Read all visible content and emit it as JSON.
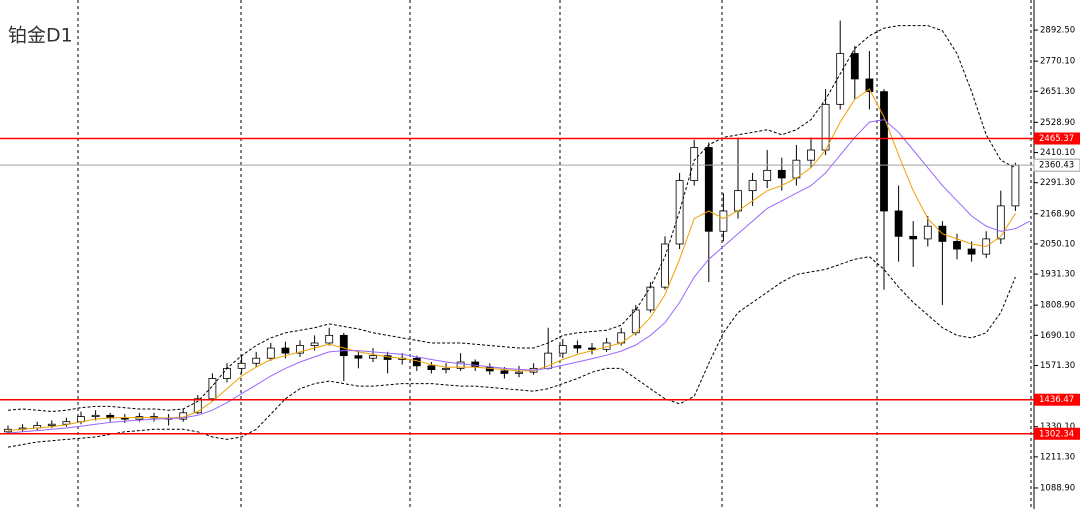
{
  "chart_data": {
    "type": "candlestick",
    "title": "铂金D1",
    "open": [
      1310,
      1320,
      1325,
      1335,
      1340,
      1350,
      1370,
      1375,
      1365,
      1360,
      1370,
      1365,
      1360,
      1385,
      1440,
      1520,
      1560,
      1580,
      1600,
      1640,
      1620,
      1650,
      1660,
      1690,
      1610,
      1600,
      1610,
      1595,
      1600,
      1570,
      1555,
      1560,
      1585,
      1565,
      1550,
      1540,
      1545,
      1560,
      1620,
      1650,
      1640,
      1635,
      1660,
      1700,
      1790,
      1880,
      2050,
      2300,
      2430,
      2100,
      2180,
      2260,
      2300,
      2340,
      2310,
      2380,
      2420,
      2600,
      2800,
      2700,
      2650,
      2180,
      2080,
      2070,
      2120,
      2060,
      2030,
      2010,
      2070,
      2200
    ],
    "high": [
      1335,
      1340,
      1350,
      1355,
      1365,
      1390,
      1395,
      1385,
      1380,
      1385,
      1385,
      1380,
      1400,
      1455,
      1540,
      1580,
      1610,
      1625,
      1660,
      1665,
      1670,
      1690,
      1720,
      1700,
      1630,
      1640,
      1625,
      1620,
      1610,
      1585,
      1580,
      1620,
      1595,
      1580,
      1565,
      1570,
      1580,
      1720,
      1675,
      1670,
      1660,
      1680,
      1720,
      1810,
      1900,
      2080,
      2330,
      2460,
      2450,
      2250,
      2470,
      2330,
      2420,
      2390,
      2440,
      2470,
      2660,
      2930,
      2830,
      2810,
      2660,
      2280,
      2140,
      2160,
      2140,
      2090,
      2060,
      2100,
      2260,
      2370
    ],
    "low": [
      1300,
      1310,
      1315,
      1325,
      1330,
      1340,
      1355,
      1350,
      1345,
      1350,
      1350,
      1335,
      1350,
      1380,
      1430,
      1505,
      1540,
      1565,
      1590,
      1600,
      1605,
      1630,
      1650,
      1510,
      1560,
      1585,
      1540,
      1575,
      1550,
      1540,
      1540,
      1550,
      1550,
      1535,
      1520,
      1525,
      1535,
      1555,
      1600,
      1620,
      1615,
      1625,
      1650,
      1690,
      1780,
      1870,
      2030,
      2280,
      1900,
      2060,
      2150,
      2200,
      2270,
      2260,
      2280,
      2350,
      2400,
      2580,
      2620,
      2580,
      1870,
      1980,
      1960,
      2040,
      1810,
      1990,
      1980,
      1995,
      2050,
      2180
    ],
    "close": [
      1320,
      1325,
      1335,
      1340,
      1350,
      1370,
      1375,
      1365,
      1360,
      1370,
      1365,
      1360,
      1385,
      1440,
      1520,
      1560,
      1580,
      1600,
      1640,
      1620,
      1650,
      1660,
      1690,
      1610,
      1600,
      1610,
      1595,
      1600,
      1570,
      1555,
      1560,
      1585,
      1565,
      1550,
      1540,
      1545,
      1560,
      1620,
      1650,
      1640,
      1635,
      1660,
      1700,
      1790,
      1880,
      2050,
      2300,
      2430,
      2100,
      2180,
      2260,
      2300,
      2340,
      2310,
      2380,
      2420,
      2600,
      2800,
      2700,
      2650,
      2180,
      2080,
      2070,
      2120,
      2060,
      2030,
      2010,
      2070,
      2200,
      2360
    ],
    "up_color": "#ffffff",
    "down_color": "#000000",
    "lines": [
      {
        "color": "#f0a000",
        "dashed": false,
        "values": [
          1315,
          1320,
          1325,
          1330,
          1338,
          1350,
          1360,
          1365,
          1366,
          1366,
          1366,
          1364,
          1368,
          1390,
          1430,
          1480,
          1530,
          1565,
          1595,
          1610,
          1625,
          1640,
          1655,
          1640,
          1625,
          1615,
          1605,
          1600,
          1590,
          1575,
          1565,
          1565,
          1565,
          1560,
          1555,
          1550,
          1550,
          1570,
          1595,
          1615,
          1630,
          1645,
          1660,
          1700,
          1760,
          1850,
          1990,
          2150,
          2180,
          2150,
          2180,
          2220,
          2260,
          2280,
          2310,
          2350,
          2420,
          2530,
          2620,
          2660,
          2550,
          2400,
          2260,
          2150,
          2090,
          2070,
          2050,
          2040,
          2080,
          2170
        ]
      },
      {
        "color": "#9966ff",
        "dashed": false,
        "values": [
          1305,
          1310,
          1315,
          1320,
          1325,
          1332,
          1340,
          1347,
          1352,
          1356,
          1360,
          1362,
          1365,
          1375,
          1395,
          1425,
          1460,
          1495,
          1530,
          1560,
          1585,
          1605,
          1625,
          1630,
          1630,
          1625,
          1620,
          1615,
          1605,
          1595,
          1585,
          1578,
          1572,
          1566,
          1560,
          1556,
          1553,
          1560,
          1572,
          1585,
          1598,
          1612,
          1628,
          1652,
          1690,
          1740,
          1820,
          1920,
          1990,
          2040,
          2090,
          2140,
          2190,
          2220,
          2250,
          2280,
          2330,
          2400,
          2470,
          2530,
          2540,
          2490,
          2420,
          2350,
          2280,
          2220,
          2160,
          2120,
          2100,
          2110,
          2140
        ]
      },
      {
        "color": "#000000",
        "dashed": true,
        "values": [
          1395,
          1400,
          1395,
          1390,
          1395,
          1405,
          1410,
          1410,
          1405,
          1400,
          1400,
          1395,
          1400,
          1430,
          1490,
          1560,
          1610,
          1650,
          1680,
          1700,
          1710,
          1720,
          1735,
          1725,
          1715,
          1700,
          1690,
          1680,
          1670,
          1660,
          1660,
          1660,
          1655,
          1650,
          1645,
          1640,
          1640,
          1660,
          1690,
          1700,
          1705,
          1710,
          1730,
          1790,
          1880,
          2000,
          2180,
          2380,
          2440,
          2470,
          2480,
          2490,
          2500,
          2480,
          2500,
          2540,
          2620,
          2720,
          2820,
          2870,
          2900,
          2910,
          2910,
          2910,
          2890,
          2800,
          2650,
          2480,
          2380,
          2350
        ]
      },
      {
        "color": "#000000",
        "dashed": true,
        "values": [
          1250,
          1260,
          1270,
          1275,
          1280,
          1285,
          1290,
          1300,
          1310,
          1315,
          1320,
          1320,
          1320,
          1310,
          1290,
          1280,
          1290,
          1320,
          1380,
          1440,
          1480,
          1500,
          1510,
          1500,
          1490,
          1490,
          1495,
          1500,
          1500,
          1500,
          1495,
          1490,
          1490,
          1485,
          1480,
          1475,
          1470,
          1480,
          1500,
          1520,
          1545,
          1560,
          1560,
          1520,
          1480,
          1440,
          1420,
          1450,
          1580,
          1700,
          1780,
          1820,
          1860,
          1900,
          1930,
          1940,
          1950,
          1970,
          1990,
          2000,
          1950,
          1880,
          1820,
          1770,
          1720,
          1690,
          1680,
          1700,
          1780,
          1920
        ]
      }
    ],
    "ylim": [
      1006,
      3011
    ],
    "yticks": [
      {
        "value": 2892.5,
        "label": "2892.50"
      },
      {
        "value": 2770.1,
        "label": "2770.10"
      },
      {
        "value": 2651.3,
        "label": "2651.30"
      },
      {
        "value": 2528.9,
        "label": "2528.90"
      },
      {
        "value": 2410.1,
        "label": "2410.10"
      },
      {
        "value": 2291.3,
        "label": "2291.30"
      },
      {
        "value": 2168.9,
        "label": "2168.90"
      },
      {
        "value": 2050.1,
        "label": "2050.10"
      },
      {
        "value": 1931.3,
        "label": "1931.30"
      },
      {
        "value": 1808.9,
        "label": "1808.90"
      },
      {
        "value": 1690.1,
        "label": "1690.10"
      },
      {
        "value": 1571.3,
        "label": "1571.30"
      },
      {
        "value": 1330.1,
        "label": "1330.10"
      },
      {
        "value": 1211.3,
        "label": "1211.30"
      },
      {
        "value": 1088.9,
        "label": "1088.90"
      }
    ],
    "levels": [
      2465.37,
      1436.47,
      1302.34
    ],
    "level_color": "#ff0000",
    "last_price": 2360.43,
    "last_price_color": "#a0a0a0"
  }
}
